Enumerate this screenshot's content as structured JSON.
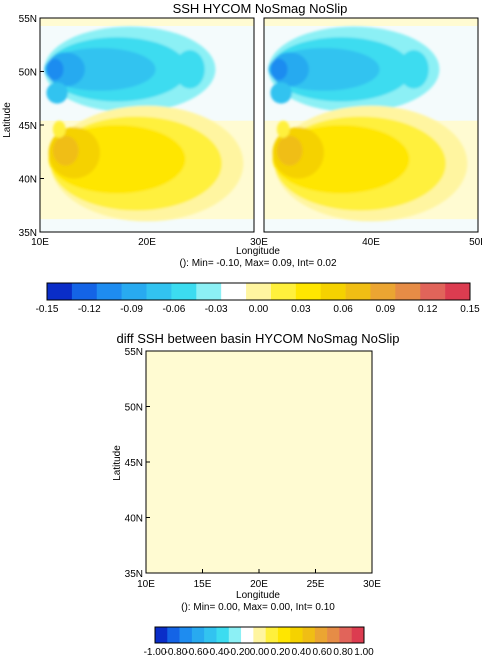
{
  "colors": {
    "scale": [
      "#0a2dc8",
      "#1464e6",
      "#1e8cf0",
      "#28aaf0",
      "#32c3f0",
      "#3cdcf0",
      "#8cf0f5",
      "#ffffff",
      "#fff5a0",
      "#fff03c",
      "#ffe600",
      "#f5d200",
      "#f0be14",
      "#eba532",
      "#e68c46",
      "#e1645a",
      "#dc3c50"
    ],
    "bg_light": "#f4fbfc",
    "diff_fill": "#fffbd2",
    "frame": "#000000"
  },
  "chart_data": [
    {
      "type": "heatmap",
      "title": "SSH HYCOM NoSmag NoSlip",
      "xlabel": "Longitude",
      "ylabel": "Latitude",
      "x_ticks": [
        "10E",
        "20E",
        "30E",
        "40E",
        "50E"
      ],
      "y_ticks": [
        "35N",
        "40N",
        "45N",
        "50N",
        "55N"
      ],
      "xlim": [
        10,
        50
      ],
      "ylim": [
        35,
        55
      ],
      "stats": "(): Min= -0.10, Max= 0.09, Int= 0.02",
      "min": -0.1,
      "max": 0.09,
      "interval": 0.02,
      "panels": 2
    },
    {
      "type": "colorbar",
      "ticks": [
        "-0.15",
        "-0.12",
        "-0.09",
        "-0.06",
        "-0.03",
        "0.00",
        "0.03",
        "0.06",
        "0.09",
        "0.12",
        "0.15"
      ],
      "range": [
        -0.15,
        0.15
      ]
    },
    {
      "type": "heatmap",
      "title": "diff SSH between basin HYCOM NoSmag NoSlip",
      "xlabel": "Longitude",
      "ylabel": "Latitude",
      "x_ticks": [
        "10E",
        "15E",
        "20E",
        "25E",
        "30E"
      ],
      "y_ticks": [
        "35N",
        "40N",
        "45N",
        "50N",
        "55N"
      ],
      "xlim": [
        10,
        30
      ],
      "ylim": [
        35,
        55
      ],
      "stats": "(): Min= 0.00, Max= 0.00, Int= 0.10",
      "min": 0.0,
      "max": 0.0,
      "interval": 0.1
    },
    {
      "type": "colorbar",
      "ticks": [
        "-1.00",
        "-0.80",
        "-0.60",
        "-0.40",
        "-0.20",
        "0.00",
        "0.20",
        "0.40",
        "0.60",
        "0.80",
        "1.00"
      ],
      "range": [
        -1.0,
        1.0
      ]
    }
  ]
}
